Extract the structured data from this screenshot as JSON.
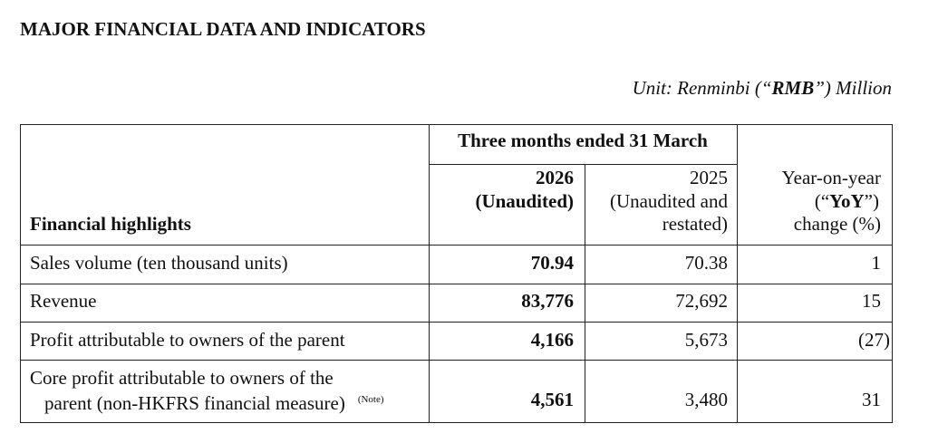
{
  "header": {
    "title": "MAJOR FINANCIAL DATA AND INDICATORS",
    "unit": {
      "before": "Unit: Renminbi (“",
      "bold": "RMB",
      "after": "”) Million"
    }
  },
  "table": {
    "period": "Three months ended 31 March",
    "row_header": "Financial highlights",
    "current_header": [
      "2026",
      "(Unaudited)"
    ],
    "prior_header": [
      "2025",
      "(Unaudited and",
      "restated)"
    ],
    "yoy_header": {
      "line1": "Year-on-year",
      "line2": {
        "before": "(“",
        "bold": "YoY",
        "after": "”)"
      },
      "line3": "change (%)"
    },
    "rows": [
      {
        "label": [
          "Sales volume (ten thousand units)"
        ],
        "current": "70.94",
        "prior": "70.38",
        "yoy": "1"
      },
      {
        "label": [
          "Revenue"
        ],
        "current": "83,776",
        "prior": "72,692",
        "yoy": "15"
      },
      {
        "label": [
          "Profit attributable to owners of the parent"
        ],
        "current": "4,166",
        "prior": "5,673",
        "yoy": "(27)"
      },
      {
        "label": [
          "Core profit attributable to owners of the",
          "parent (non-HKFRS financial measure)"
        ],
        "note": "(Note)",
        "current": "4,561",
        "prior": "3,480",
        "yoy": "31"
      }
    ]
  }
}
